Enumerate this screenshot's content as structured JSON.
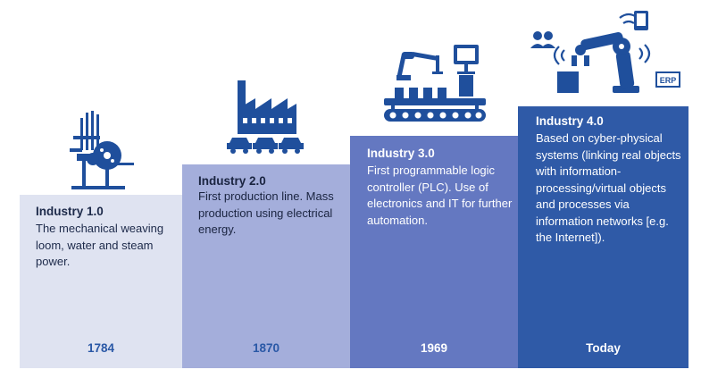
{
  "stages": [
    {
      "title": "Industry 1.0",
      "description": "The mechanical weaving loom, water and steam power.",
      "year": "1784",
      "icon": "weaving-loom-icon"
    },
    {
      "title": "Industry 2.0",
      "description": "First production line. Mass production using electrical energy.",
      "year": "1870",
      "icon": "factory-icon"
    },
    {
      "title": "Industry 3.0",
      "description": "First programmable logic controller (PLC). Use of electronics and IT for further automation.",
      "year": "1969",
      "icon": "robot-arm-conveyor-icon"
    },
    {
      "title": "Industry 4.0",
      "description": "Based on cyber-physical systems (linking real objects with information-processing/virtual objects and processes via information networks [e.g. the Internet]).",
      "year": "Today",
      "icon": "connected-robot-icon"
    }
  ],
  "icons": {
    "erp_label": "ERP"
  },
  "colors": {
    "step1": "#dfe3f1",
    "step2": "#a4aedb",
    "step3": "#6478c1",
    "step4": "#2f5aa7",
    "icon": "#1f4f9c"
  }
}
